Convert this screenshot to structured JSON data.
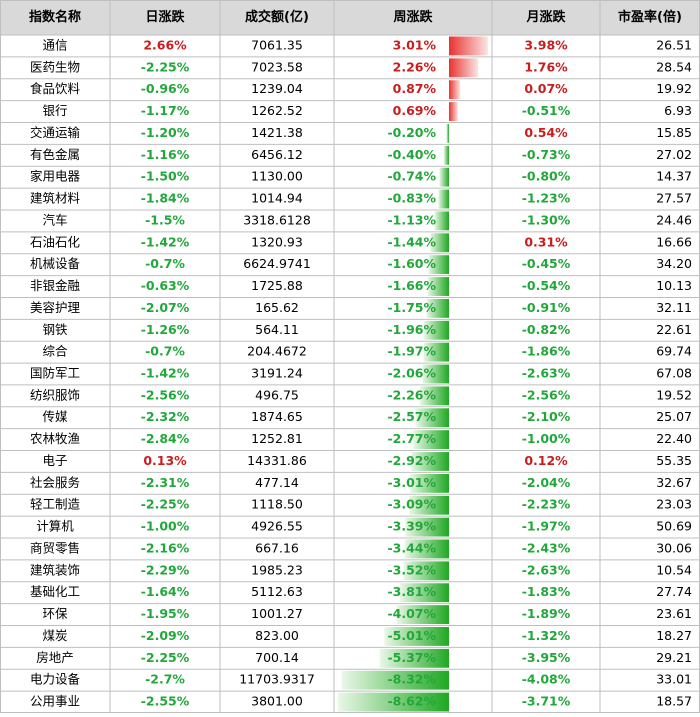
{
  "table": {
    "header": [
      "指数名称",
      "日涨跌",
      "成交额(亿)",
      "周涨跌",
      "月涨跌",
      "市盈率(倍)"
    ],
    "rows": [
      [
        "通信",
        "2.66%",
        "7061.35",
        "3.01%",
        "3.98%",
        "26.51"
      ],
      [
        "医药生物",
        "-2.25%",
        "7023.58",
        "2.26%",
        "1.76%",
        "28.54"
      ],
      [
        "食品饮料",
        "-0.96%",
        "1239.04",
        "0.87%",
        "0.07%",
        "19.92"
      ],
      [
        "银行",
        "-1.17%",
        "1262.52",
        "0.69%",
        "-0.51%",
        "6.93"
      ],
      [
        "交通运输",
        "-1.20%",
        "1421.38",
        "-0.20%",
        "0.54%",
        "15.85"
      ],
      [
        "有色金属",
        "-1.16%",
        "6456.12",
        "-0.40%",
        "-0.73%",
        "27.02"
      ],
      [
        "家用电器",
        "-1.50%",
        "1130.00",
        "-0.74%",
        "-0.80%",
        "14.37"
      ],
      [
        "建筑材料",
        "-1.84%",
        "1014.94",
        "-0.83%",
        "-1.23%",
        "27.57"
      ],
      [
        "汽车",
        "-1.5%",
        "3318.6128",
        "-1.13%",
        "-1.30%",
        "24.46"
      ],
      [
        "石油石化",
        "-1.42%",
        "1320.93",
        "-1.44%",
        "0.31%",
        "16.66"
      ],
      [
        "机械设备",
        "-0.7%",
        "6624.9741",
        "-1.60%",
        "-0.45%",
        "34.20"
      ],
      [
        "非银金融",
        "-0.63%",
        "1725.88",
        "-1.66%",
        "-0.54%",
        "10.13"
      ],
      [
        "美容护理",
        "-2.07%",
        "165.62",
        "-1.75%",
        "-0.91%",
        "32.11"
      ],
      [
        "钢铁",
        "-1.26%",
        "564.11",
        "-1.96%",
        "-0.82%",
        "22.61"
      ],
      [
        "综合",
        "-0.7%",
        "204.4672",
        "-1.97%",
        "-1.86%",
        "69.74"
      ],
      [
        "国防军工",
        "-1.42%",
        "3191.24",
        "-2.06%",
        "-2.63%",
        "67.08"
      ],
      [
        "纺织服饰",
        "-2.56%",
        "496.75",
        "-2.26%",
        "-2.56%",
        "19.52"
      ],
      [
        "传媒",
        "-2.32%",
        "1874.65",
        "-2.57%",
        "-2.10%",
        "25.07"
      ],
      [
        "农林牧渔",
        "-2.84%",
        "1252.81",
        "-2.77%",
        "-1.00%",
        "22.40"
      ],
      [
        "电子",
        "0.13%",
        "14331.86",
        "-2.92%",
        "0.12%",
        "55.35"
      ],
      [
        "社会服务",
        "-2.31%",
        "477.14",
        "-3.01%",
        "-2.04%",
        "32.67"
      ],
      [
        "轻工制造",
        "-2.25%",
        "1118.50",
        "-3.09%",
        "-2.23%",
        "23.03"
      ],
      [
        "计算机",
        "-1.00%",
        "4926.55",
        "-3.39%",
        "-1.97%",
        "50.69"
      ],
      [
        "商贸零售",
        "-2.16%",
        "667.16",
        "-3.44%",
        "-2.43%",
        "30.06"
      ],
      [
        "建筑装饰",
        "-2.29%",
        "1985.23",
        "-3.52%",
        "-2.63%",
        "10.54"
      ],
      [
        "基础化工",
        "-1.64%",
        "5112.63",
        "-3.81%",
        "-1.83%",
        "27.74"
      ],
      [
        "环保",
        "-1.95%",
        "1001.27",
        "-4.07%",
        "-1.89%",
        "23.61"
      ],
      [
        "煤炭",
        "-2.09%",
        "823.00",
        "-5.01%",
        "-1.32%",
        "18.27"
      ],
      [
        "房地产",
        "-2.25%",
        "700.14",
        "-5.37%",
        "-3.95%",
        "29.21"
      ],
      [
        "电力设备",
        "-2.7%",
        "11703.9317",
        "-8.32%",
        "-4.08%",
        "33.01"
      ],
      [
        "公用事业",
        "-2.55%",
        "3801.00",
        "-8.62%",
        "-3.71%",
        "18.57"
      ]
    ]
  }
}
